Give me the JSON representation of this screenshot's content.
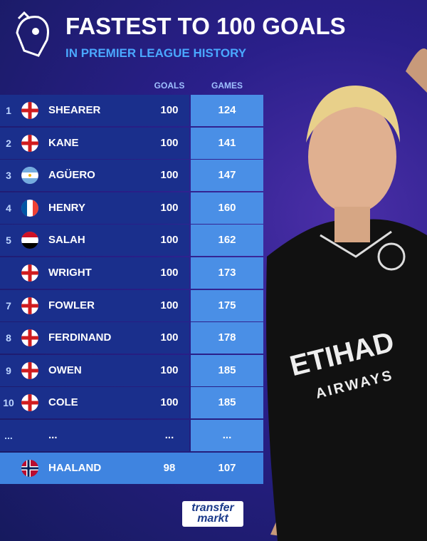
{
  "header": {
    "title": "FASTEST TO 100 GOALS",
    "subtitle": "IN PREMIER LEAGUE HISTORY"
  },
  "table": {
    "columns": [
      "GOALS",
      "GAMES"
    ],
    "rows": [
      [
        1,
        "SHEARER",
        100,
        124
      ],
      [
        2,
        "KANE",
        100,
        141
      ],
      [
        3,
        "AGÜERO",
        100,
        147
      ],
      [
        4,
        "HENRY",
        100,
        160
      ],
      [
        5,
        "SALAH",
        100,
        162
      ],
      [
        null,
        "WRIGHT",
        100,
        173
      ],
      [
        7,
        "FOWLER",
        100,
        175
      ],
      [
        8,
        "FERDINAND",
        100,
        178
      ],
      [
        9,
        "OWEN",
        100,
        185
      ],
      [
        10,
        "COLE",
        100,
        185
      ],
      [
        "...",
        "...",
        "...",
        "..."
      ],
      [
        null,
        "HAALAND",
        98,
        107
      ]
    ]
  },
  "sponsor": [
    "ETIHAD",
    "AIRWAYS"
  ],
  "footer": {
    "logo": [
      "transfer",
      "markt"
    ]
  }
}
